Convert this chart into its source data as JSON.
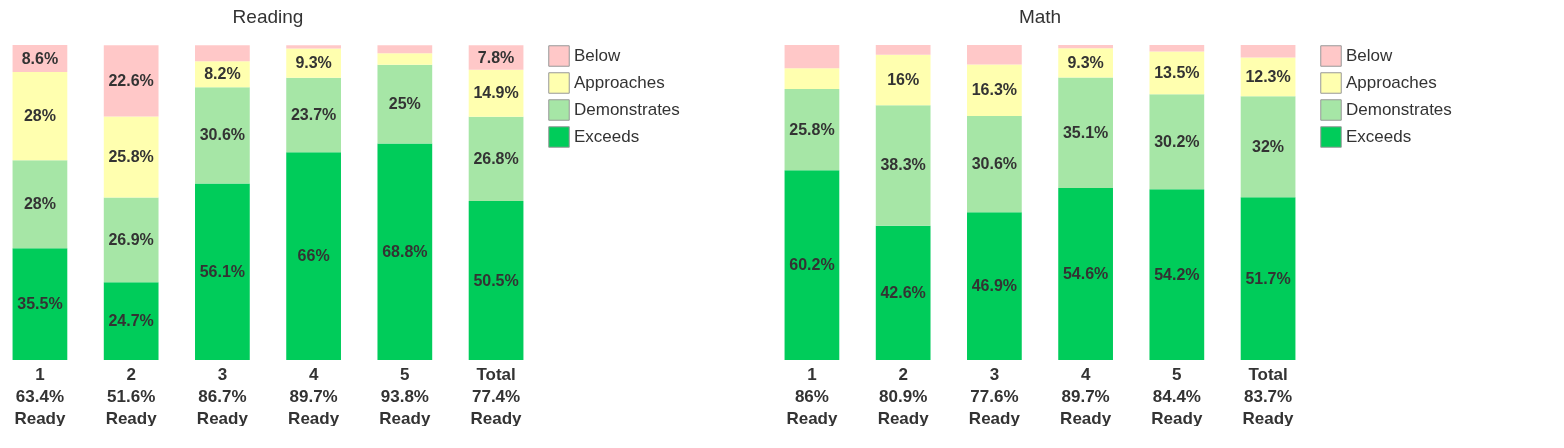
{
  "chart_data": [
    {
      "type": "bar",
      "title": "Reading",
      "stacked": true,
      "legend": "top right",
      "grid": false,
      "categories": [
        "1\n63.4%\nReady",
        "2\n51.6%\nReady",
        "3\n86.7%\nReady",
        "4\n89.7%\nReady",
        "5\n93.8%\nReady",
        "Total\n77.4%\nReady"
      ],
      "series": [
        {
          "name": "Exceeds",
          "color": "#00cc5a",
          "values": [
            35.5,
            24.7,
            56.1,
            66,
            68.8,
            50.5
          ],
          "value_labels": [
            "35.5%",
            "24.7%",
            "56.1%",
            "66%",
            "68.8%",
            "50.5%"
          ]
        },
        {
          "name": "Demonstrates",
          "color": "#a6e6a6",
          "values": [
            28,
            26.9,
            30.6,
            23.7,
            25,
            26.8
          ],
          "value_labels": [
            "28%",
            "26.9%",
            "30.6%",
            "23.7%",
            "25%",
            "26.8%"
          ]
        },
        {
          "name": "Approaches",
          "color": "#ffffaf",
          "values": [
            28,
            25.8,
            8.2,
            9.3,
            3.7,
            14.9
          ],
          "value_labels": [
            "28%",
            "25.8%",
            "8.2%",
            "9.3%",
            null,
            "14.9%"
          ]
        },
        {
          "name": "Below",
          "color": "#ffc8c8",
          "values": [
            8.6,
            22.6,
            5.1,
            1,
            2.5,
            7.8
          ],
          "value_labels": [
            "8.6%",
            "22.6%",
            null,
            null,
            null,
            "7.8%"
          ]
        }
      ]
    },
    {
      "type": "bar",
      "title": "Math",
      "stacked": true,
      "legend": "top right",
      "grid": false,
      "categories": [
        "1\n86%\nReady",
        "2\n80.9%\nReady",
        "3\n77.6%\nReady",
        "4\n89.7%\nReady",
        "5\n84.4%\nReady",
        "Total\n83.7%\nReady"
      ],
      "series": [
        {
          "name": "Exceeds",
          "color": "#00cc5a",
          "values": [
            60.2,
            42.6,
            46.9,
            54.6,
            54.2,
            51.7
          ],
          "value_labels": [
            "60.2%",
            "42.6%",
            "46.9%",
            "54.6%",
            "54.2%",
            "51.7%"
          ]
        },
        {
          "name": "Demonstrates",
          "color": "#a6e6a6",
          "values": [
            25.8,
            38.3,
            30.6,
            35.1,
            30.2,
            32
          ],
          "value_labels": [
            "25.8%",
            "38.3%",
            "30.6%",
            "35.1%",
            "30.2%",
            "32%"
          ]
        },
        {
          "name": "Approaches",
          "color": "#ffffaf",
          "values": [
            6.6,
            16,
            16.3,
            9.3,
            13.5,
            12.3
          ],
          "value_labels": [
            null,
            "16%",
            "16.3%",
            "9.3%",
            "13.5%",
            "12.3%"
          ]
        },
        {
          "name": "Below",
          "color": "#ffc8c8",
          "values": [
            7.4,
            3.1,
            6.2,
            1,
            2.1,
            4
          ],
          "value_labels": [
            null,
            null,
            null,
            null,
            null,
            null
          ]
        }
      ]
    }
  ]
}
